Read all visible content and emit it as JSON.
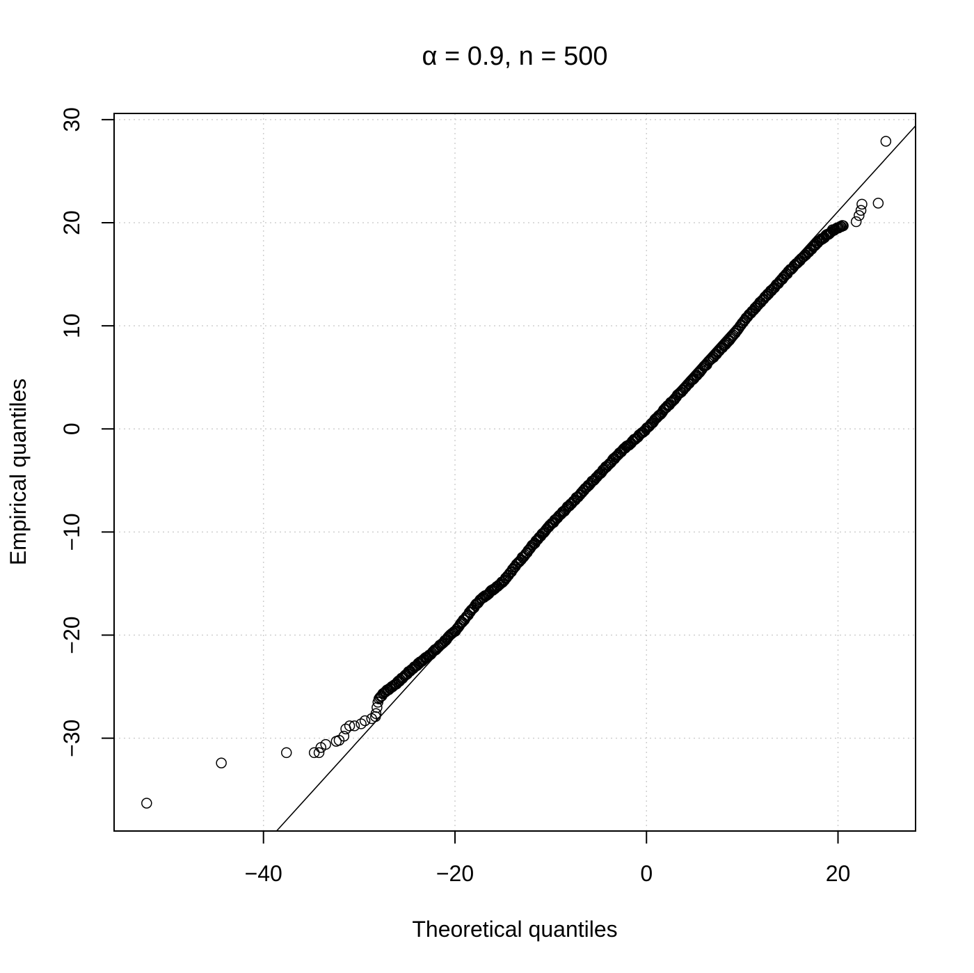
{
  "chart_data": {
    "type": "scatter",
    "title": "α = 0.9, n = 500",
    "xlabel": "Theoretical quantiles",
    "ylabel": "Empirical quantiles",
    "xlim": [
      -55.6,
      28.1
    ],
    "ylim": [
      -39.0,
      30.6
    ],
    "xticks": [
      -40,
      -20,
      0,
      20
    ],
    "xtick_labels": [
      "−40",
      "−20",
      "0",
      "20"
    ],
    "yticks": [
      -30,
      -20,
      -10,
      0,
      10,
      20,
      30
    ],
    "ytick_labels": [
      "−30",
      "−20",
      "−10",
      "0",
      "10",
      "20",
      "30"
    ],
    "grid": true,
    "grid_style": "dotted",
    "reference_line": {
      "slope": 1.025,
      "intercept": 0.6
    },
    "series": [
      {
        "n": 500,
        "tail_points": [
          [
            -52.2,
            -36.3
          ],
          [
            -44.4,
            -32.4
          ],
          [
            -37.6,
            -31.4
          ],
          [
            -34.7,
            -31.4
          ],
          [
            -34.2,
            -31.4
          ],
          [
            -34.0,
            -30.9
          ],
          [
            -33.5,
            -30.6
          ],
          [
            -32.4,
            -30.3
          ],
          [
            -32.1,
            -30.2
          ],
          [
            -31.6,
            -29.8
          ],
          [
            -31.4,
            -29.1
          ],
          [
            -31.0,
            -28.8
          ],
          [
            -30.5,
            -28.8
          ],
          [
            -29.8,
            -28.6
          ],
          [
            -29.4,
            -28.3
          ],
          [
            -28.7,
            -28.1
          ],
          [
            -28.3,
            -27.9
          ],
          [
            21.9,
            20.1
          ],
          [
            22.2,
            20.7
          ],
          [
            22.4,
            21.2
          ],
          [
            22.5,
            21.8
          ],
          [
            24.2,
            21.9
          ],
          [
            25.0,
            27.9
          ]
        ],
        "bulk_knots": [
          [
            -28.3,
            -27.9
          ],
          [
            -28.0,
            -26.2
          ],
          [
            -27.3,
            -25.5
          ],
          [
            -26.0,
            -24.6
          ],
          [
            -24.5,
            -23.3
          ],
          [
            -22.0,
            -21.4
          ],
          [
            -20.0,
            -19.6
          ],
          [
            -17.5,
            -16.7
          ],
          [
            -15.0,
            -14.8
          ],
          [
            -12.0,
            -11.4
          ],
          [
            -10.0,
            -9.3
          ],
          [
            -7.0,
            -6.4
          ],
          [
            -3.0,
            -2.5
          ],
          [
            0.0,
            0.0
          ],
          [
            3.0,
            3.0
          ],
          [
            6.0,
            6.0
          ],
          [
            9.0,
            9.0
          ],
          [
            10.0,
            10.3
          ],
          [
            12.0,
            12.4
          ],
          [
            15.0,
            15.4
          ],
          [
            18.0,
            18.2
          ],
          [
            19.5,
            19.3
          ],
          [
            20.6,
            19.8
          ]
        ]
      }
    ]
  }
}
